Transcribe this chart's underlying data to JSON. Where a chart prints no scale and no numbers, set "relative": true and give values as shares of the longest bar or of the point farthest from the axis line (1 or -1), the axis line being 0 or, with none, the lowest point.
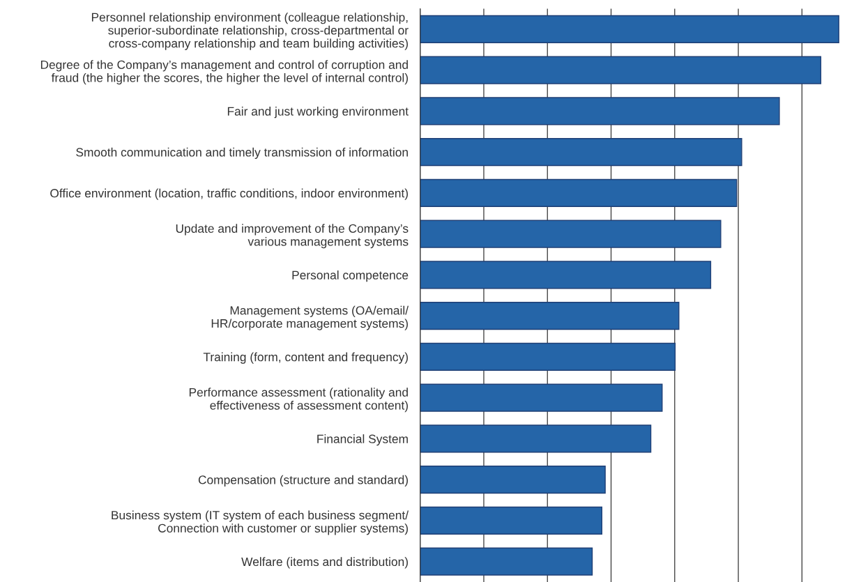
{
  "chart_data": {
    "type": "bar",
    "orientation": "horizontal",
    "relative": true,
    "grid": "x",
    "color": "#2565a8",
    "categories": [
      "Personnel relationship environment (colleague relationship,\nsuperior-subordinate relationship, cross-departmental or\ncross-company relationship and team building activities)",
      "Degree of the Company’s management and control of corruption and\nfraud (the higher the scores, the higher the level of internal control)",
      "Fair and just working environment",
      "Smooth communication and timely transmission of information",
      "Office environment (location, traffic conditions, indoor environment)",
      "Update and improvement of the Company’s\nvarious management systems",
      "Personal competence",
      "Management systems (OA/email/\nHR/corporate management systems)",
      "Training (form, content and frequency)",
      "Performance assessment (rationality and\neffectiveness of assessment content)",
      "Financial System",
      "Compensation (structure and standard)",
      "Business system (IT system of each business segment/\nConnection with customer or supplier systems)",
      "Welfare (items and distribution)"
    ],
    "values": [
      1,
      0.957,
      0.858,
      0.768,
      0.756,
      0.718,
      0.694,
      0.618,
      0.609,
      0.578,
      0.551,
      0.442,
      0.434,
      0.411
    ]
  }
}
